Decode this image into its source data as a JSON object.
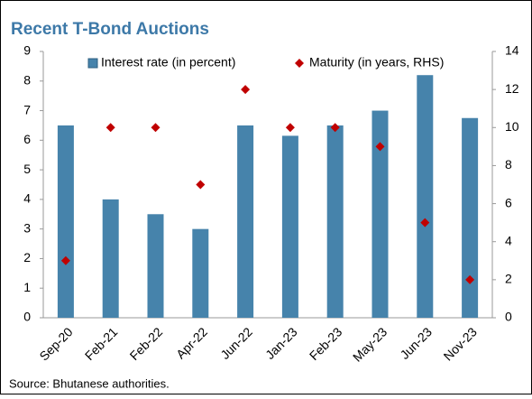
{
  "chart_data": {
    "type": "bar_scatter",
    "title": "Recent T-Bond Auctions",
    "source": "Source: Bhutanese authorities.",
    "categories": [
      "Sep-20",
      "Feb-21",
      "Feb-22",
      "Apr-22",
      "Jun-22",
      "Jan-23",
      "Feb-23",
      "May-23",
      "Jun-23",
      "Nov-23"
    ],
    "series": [
      {
        "name": "Interest rate (in percent)",
        "color": "#4683ab",
        "type": "bar",
        "values": [
          6.5,
          4.0,
          3.5,
          3.0,
          6.5,
          6.15,
          6.5,
          7.0,
          8.2,
          6.75
        ]
      },
      {
        "name": "Maturity (in years, RHS)",
        "color": "#c00000",
        "type": "scatter",
        "axis": "y2",
        "values": [
          3,
          10,
          10,
          7,
          12,
          10,
          10,
          9,
          5,
          2
        ]
      }
    ],
    "ylim": [
      0,
      9
    ],
    "yticks": [
      0,
      1,
      2,
      3,
      4,
      5,
      6,
      7,
      8,
      9
    ],
    "y2lim": [
      0,
      14
    ],
    "y2ticks": [
      0,
      2,
      4,
      6,
      8,
      10,
      12,
      14
    ],
    "legend": "top"
  }
}
